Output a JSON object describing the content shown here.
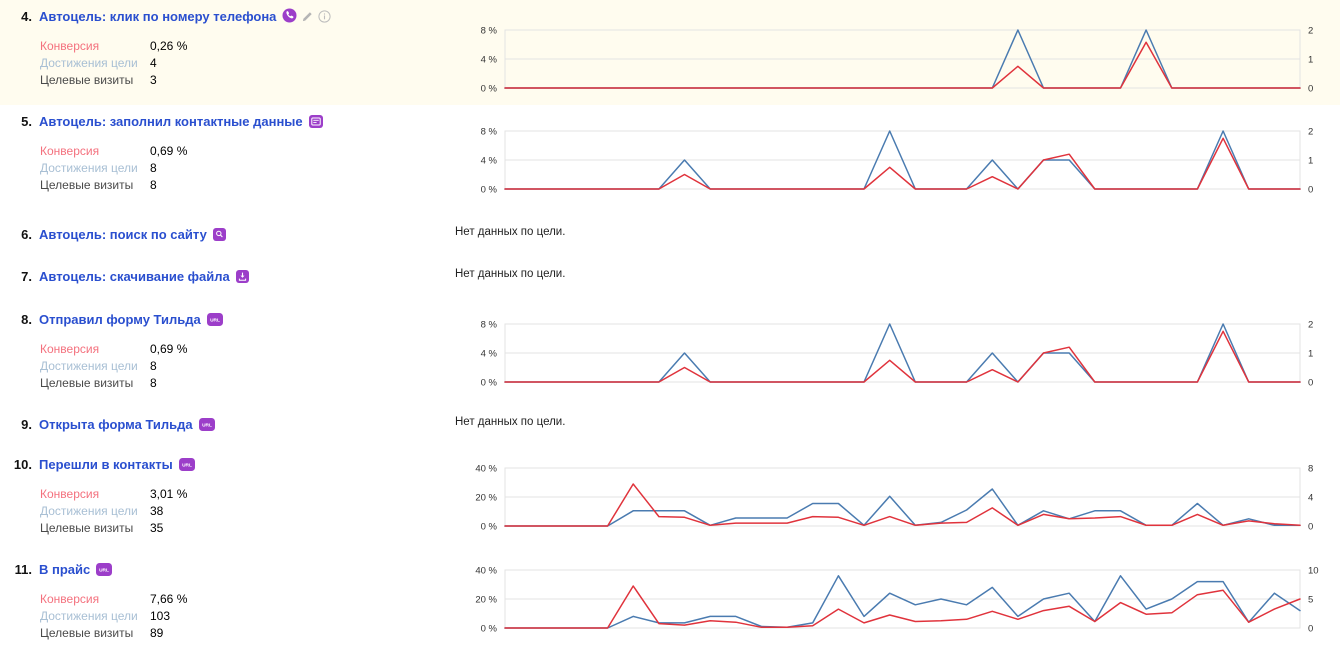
{
  "no_data_text": "Нет данных по цели.",
  "stats_labels": {
    "conversion": "Конверсия",
    "reaches": "Достижения цели",
    "target_visits": "Целевые визиты"
  },
  "colors": {
    "link_blue": "#2a4fcf",
    "goal_icon_purple": "#9c3ec9",
    "conversion_label_pink": "#f4717e",
    "reaches_label_blue": "#a8bfd4",
    "highlight_row_bg": "#fffcef",
    "chart_line_blue": "#4a7bb0",
    "chart_line_red": "#e0333c",
    "grid_gray": "#e3e3e3"
  },
  "goals": [
    {
      "number": "4.",
      "title": "Автоцель: клик по номеру телефона",
      "icons": [
        "phone-call-icon",
        "edit-pencil-icon",
        "info-icon"
      ],
      "highlighted": true,
      "stats": {
        "conversion": "0,26 %",
        "reaches": "4",
        "target_visits": "3"
      },
      "chart_index": 0
    },
    {
      "number": "5.",
      "title": "Автоцель: заполнил контактные данные",
      "icons": [
        "form-fill-icon"
      ],
      "highlighted": false,
      "stats": {
        "conversion": "0,69 %",
        "reaches": "8",
        "target_visits": "8"
      },
      "chart_index": 1
    },
    {
      "number": "6.",
      "title": "Автоцель: поиск по сайту",
      "icons": [
        "site-search-icon"
      ],
      "highlighted": false,
      "no_data": true
    },
    {
      "number": "7.",
      "title": "Автоцель: скачивание файла",
      "icons": [
        "file-download-icon"
      ],
      "highlighted": false,
      "no_data": true
    },
    {
      "number": "8.",
      "title": "Отправил форму Тильда",
      "icons": [
        "url-badge-icon"
      ],
      "highlighted": false,
      "stats": {
        "conversion": "0,69 %",
        "reaches": "8",
        "target_visits": "8"
      },
      "chart_index": 2
    },
    {
      "number": "9.",
      "title": "Открыта форма Тильда",
      "icons": [
        "url-badge-icon"
      ],
      "highlighted": false,
      "no_data": true
    },
    {
      "number": "10.",
      "title": "Перешли в контакты",
      "icons": [
        "url-badge-icon"
      ],
      "highlighted": false,
      "stats": {
        "conversion": "3,01 %",
        "reaches": "38",
        "target_visits": "35"
      },
      "chart_index": 3
    },
    {
      "number": "11.",
      "title": "В прайс",
      "icons": [
        "url-badge-icon"
      ],
      "highlighted": false,
      "stats": {
        "conversion": "7,66 %",
        "reaches": "103",
        "target_visits": "89"
      },
      "chart_index": 4
    }
  ],
  "chart_data": [
    {
      "type": "line",
      "goal": "Автоцель: клик по номеру телефона",
      "left_ticks": [
        "8 %",
        "4 %",
        "0 %"
      ],
      "right_ticks": [
        "2",
        "1",
        "0"
      ],
      "ylim_left_percent": [
        0,
        8
      ],
      "ylim_right": [
        0,
        2
      ],
      "grid": true,
      "legend": "none",
      "series": [
        {
          "name": "Достижения цели",
          "axis": "right",
          "color": "#4a7bb0",
          "values": [
            0,
            0,
            0,
            0,
            0,
            0,
            0,
            0,
            0,
            0,
            0,
            0,
            0,
            0,
            0,
            0,
            0,
            0,
            0,
            0,
            8,
            0,
            0,
            0,
            0,
            8,
            0,
            0,
            0,
            0,
            0,
            0
          ]
        },
        {
          "name": "Конверсия",
          "axis": "left",
          "color": "#e0333c",
          "values": [
            0,
            0,
            0,
            0,
            0,
            0,
            0,
            0,
            0,
            0,
            0,
            0,
            0,
            0,
            0,
            0,
            0,
            0,
            0,
            0,
            3,
            0,
            0,
            0,
            0,
            6.3,
            0,
            0,
            0,
            0,
            0,
            0
          ]
        }
      ]
    },
    {
      "type": "line",
      "goal": "Автоцель: заполнил контактные данные",
      "left_ticks": [
        "8 %",
        "4 %",
        "0 %"
      ],
      "right_ticks": [
        "2",
        "1",
        "0"
      ],
      "ylim_left_percent": [
        0,
        8
      ],
      "ylim_right": [
        0,
        2
      ],
      "grid": true,
      "legend": "none",
      "series": [
        {
          "name": "Достижения цели",
          "axis": "right",
          "color": "#4a7bb0",
          "values": [
            0,
            0,
            0,
            0,
            0,
            0,
            0,
            4,
            0,
            0,
            0,
            0,
            0,
            0,
            0,
            8,
            0,
            0,
            0,
            4,
            0,
            4,
            4,
            0,
            0,
            0,
            0,
            0,
            8,
            0,
            0,
            0
          ]
        },
        {
          "name": "Конверсия",
          "axis": "left",
          "color": "#e0333c",
          "values": [
            0,
            0,
            0,
            0,
            0,
            0,
            0,
            2,
            0,
            0,
            0,
            0,
            0,
            0,
            0,
            3,
            0,
            0,
            0,
            1.7,
            0,
            4,
            4.8,
            0,
            0,
            0,
            0,
            0,
            7,
            0,
            0,
            0
          ]
        }
      ]
    },
    {
      "type": "line",
      "goal": "Отправил форму Тильда",
      "left_ticks": [
        "8 %",
        "4 %",
        "0 %"
      ],
      "right_ticks": [
        "2",
        "1",
        "0"
      ],
      "ylim_left_percent": [
        0,
        8
      ],
      "ylim_right": [
        0,
        2
      ],
      "grid": true,
      "legend": "none",
      "series": [
        {
          "name": "Достижения цели",
          "axis": "right",
          "color": "#4a7bb0",
          "values": [
            0,
            0,
            0,
            0,
            0,
            0,
            0,
            4,
            0,
            0,
            0,
            0,
            0,
            0,
            0,
            8,
            0,
            0,
            0,
            4,
            0,
            4,
            4,
            0,
            0,
            0,
            0,
            0,
            8,
            0,
            0,
            0
          ]
        },
        {
          "name": "Конверсия",
          "axis": "left",
          "color": "#e0333c",
          "values": [
            0,
            0,
            0,
            0,
            0,
            0,
            0,
            2,
            0,
            0,
            0,
            0,
            0,
            0,
            0,
            3,
            0,
            0,
            0,
            1.7,
            0,
            4,
            4.8,
            0,
            0,
            0,
            0,
            0,
            7,
            0,
            0,
            0
          ]
        }
      ]
    },
    {
      "type": "line",
      "goal": "Перешли в контакты",
      "left_ticks": [
        "40 %",
        "20 %",
        "0 %"
      ],
      "right_ticks": [
        "8",
        "4",
        "0"
      ],
      "ylim_left_percent": [
        0,
        40
      ],
      "ylim_right": [
        0,
        8
      ],
      "grid": true,
      "legend": "none",
      "series": [
        {
          "name": "Достижения цели",
          "axis": "right",
          "color": "#4a7bb0",
          "values": [
            0,
            0,
            0,
            0,
            0,
            10.5,
            10.5,
            10.5,
            0.5,
            5.5,
            5.5,
            5.5,
            15.5,
            15.5,
            0.5,
            20.5,
            0.5,
            2.5,
            11,
            25.5,
            0.5,
            10.5,
            5,
            10.5,
            10.5,
            0.5,
            0.5,
            15.5,
            0.5,
            5,
            0.5,
            0.5
          ]
        },
        {
          "name": "Конверсия",
          "axis": "left",
          "color": "#e0333c",
          "values": [
            0,
            0,
            0,
            0,
            0,
            29,
            6.5,
            6,
            0.5,
            2,
            2,
            2,
            6.5,
            6,
            0.5,
            6.5,
            0.5,
            2,
            2.5,
            12.5,
            0.5,
            8,
            5,
            5.5,
            6.5,
            0.5,
            0.5,
            8,
            0.5,
            3.5,
            1.5,
            0.5
          ]
        }
      ]
    },
    {
      "type": "line",
      "goal": "В прайс",
      "left_ticks": [
        "40 %",
        "20 %",
        "0 %"
      ],
      "right_ticks": [
        "10",
        "5",
        "0"
      ],
      "ylim_left_percent": [
        0,
        40
      ],
      "ylim_right": [
        0,
        10
      ],
      "grid": true,
      "legend": "none",
      "series": [
        {
          "name": "Достижения цели",
          "axis": "right",
          "color": "#4a7bb0",
          "values": [
            0,
            0,
            0,
            0,
            0,
            8,
            3.5,
            3.5,
            8,
            8,
            1,
            0.5,
            3.5,
            36,
            8,
            24,
            16,
            20,
            16,
            28,
            8,
            20,
            24,
            4.5,
            36,
            13,
            20,
            32,
            32,
            4,
            24,
            12
          ]
        },
        {
          "name": "Конверсия",
          "axis": "left",
          "color": "#e0333c",
          "values": [
            0,
            0,
            0,
            0,
            0,
            29,
            3,
            2,
            5,
            4,
            0.5,
            0.5,
            1.5,
            13,
            3.5,
            9,
            4.5,
            5,
            6,
            11.5,
            6,
            12,
            15,
            4.5,
            17.5,
            9.5,
            10.5,
            23,
            26,
            4,
            13,
            20
          ]
        }
      ]
    }
  ]
}
